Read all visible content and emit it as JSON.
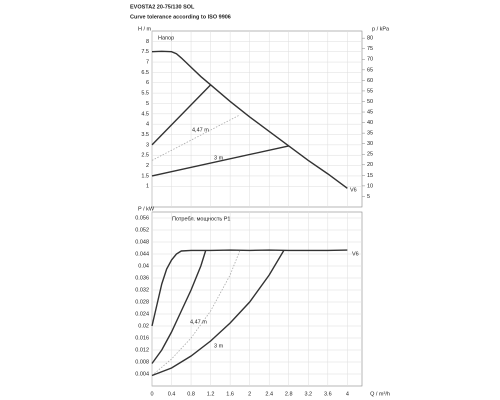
{
  "chart_data": [
    {
      "type": "line",
      "title": "EVOSTA2 20-75/130 SOL",
      "subtitle": "Curve tolerance according to ISO 9906",
      "ylabel": "H / m",
      "y2label": "p / kPa",
      "annotation": "Напор",
      "xlim": [
        0,
        4.3
      ],
      "xticks": [
        0,
        0.4,
        0.8,
        1.2,
        1.6,
        2,
        2.4,
        2.8,
        3.2,
        3.6,
        4
      ],
      "ylim": [
        0,
        8.5
      ],
      "yticks": [
        1,
        1.5,
        2,
        2.5,
        3,
        3.5,
        4,
        4.5,
        5,
        5.5,
        6,
        6.5,
        7,
        7.5,
        8
      ],
      "y2lim": [
        0,
        83.4
      ],
      "y2ticks": [
        5,
        10,
        15,
        20,
        25,
        30,
        35,
        40,
        45,
        50,
        55,
        60,
        65,
        70,
        75,
        80
      ],
      "grid": true,
      "series": [
        {
          "name": "V6",
          "color": "#333333",
          "dashed": false,
          "x": [
            0,
            0.2,
            0.4,
            0.5,
            0.6,
            0.8,
            1.0,
            1.2,
            1.6,
            2.0,
            2.4,
            2.8,
            3.2,
            3.6,
            4.0
          ],
          "values": [
            7.5,
            7.52,
            7.5,
            7.4,
            7.2,
            6.75,
            6.3,
            5.9,
            5.1,
            4.35,
            3.65,
            2.95,
            2.25,
            1.6,
            0.9
          ]
        },
        {
          "color": "#333333",
          "dashed": false,
          "x": [
            0,
            1.2
          ],
          "values": [
            3.0,
            5.9
          ]
        },
        {
          "name": "4,47 m",
          "color": "#aaaaaa",
          "dashed": true,
          "x": [
            0,
            1.8
          ],
          "values": [
            2.25,
            4.45
          ]
        },
        {
          "name": "3 m",
          "color": "#333333",
          "dashed": false,
          "x": [
            0,
            2.8
          ],
          "values": [
            1.5,
            2.95
          ]
        }
      ]
    },
    {
      "type": "line",
      "ylabel": "P / kW",
      "xlabel": "Q / m³/h",
      "annotation": "Потребл. мощность P1",
      "xlim": [
        0,
        4.3
      ],
      "xticks": [
        0,
        0.4,
        0.8,
        1.2,
        1.6,
        2,
        2.4,
        2.8,
        3.2,
        3.6,
        4
      ],
      "ylim": [
        0,
        0.058
      ],
      "yticks": [
        0.004,
        0.008,
        0.012,
        0.016,
        0.02,
        0.024,
        0.028,
        0.032,
        0.036,
        0.04,
        0.044,
        0.048,
        0.052,
        0.056
      ],
      "grid": true,
      "series": [
        {
          "name": "V6",
          "color": "#333333",
          "dashed": false,
          "x": [
            0,
            0.1,
            0.2,
            0.3,
            0.4,
            0.5,
            0.6,
            0.8,
            1.2,
            1.6,
            2,
            2.4,
            2.8,
            3.2,
            3.6,
            4
          ],
          "values": [
            0.02,
            0.027,
            0.034,
            0.039,
            0.042,
            0.044,
            0.045,
            0.0452,
            0.0452,
            0.0453,
            0.0452,
            0.0453,
            0.0452,
            0.0452,
            0.0452,
            0.0453
          ]
        },
        {
          "color": "#333333",
          "dashed": false,
          "x": [
            0,
            0.2,
            0.4,
            0.6,
            0.8,
            1.0,
            1.1
          ],
          "values": [
            0.0075,
            0.012,
            0.018,
            0.025,
            0.032,
            0.04,
            0.0452
          ]
        },
        {
          "name": "4,47 m",
          "color": "#aaaaaa",
          "dashed": true,
          "x": [
            0,
            0.4,
            0.8,
            1.2,
            1.6,
            1.8
          ],
          "values": [
            0.0035,
            0.009,
            0.016,
            0.025,
            0.037,
            0.0452
          ]
        },
        {
          "name": "3 m",
          "color": "#333333",
          "dashed": false,
          "x": [
            0,
            0.4,
            0.8,
            1.2,
            1.6,
            2.0,
            2.4,
            2.7
          ],
          "values": [
            0.0035,
            0.006,
            0.01,
            0.015,
            0.021,
            0.028,
            0.037,
            0.0452
          ]
        }
      ]
    }
  ]
}
